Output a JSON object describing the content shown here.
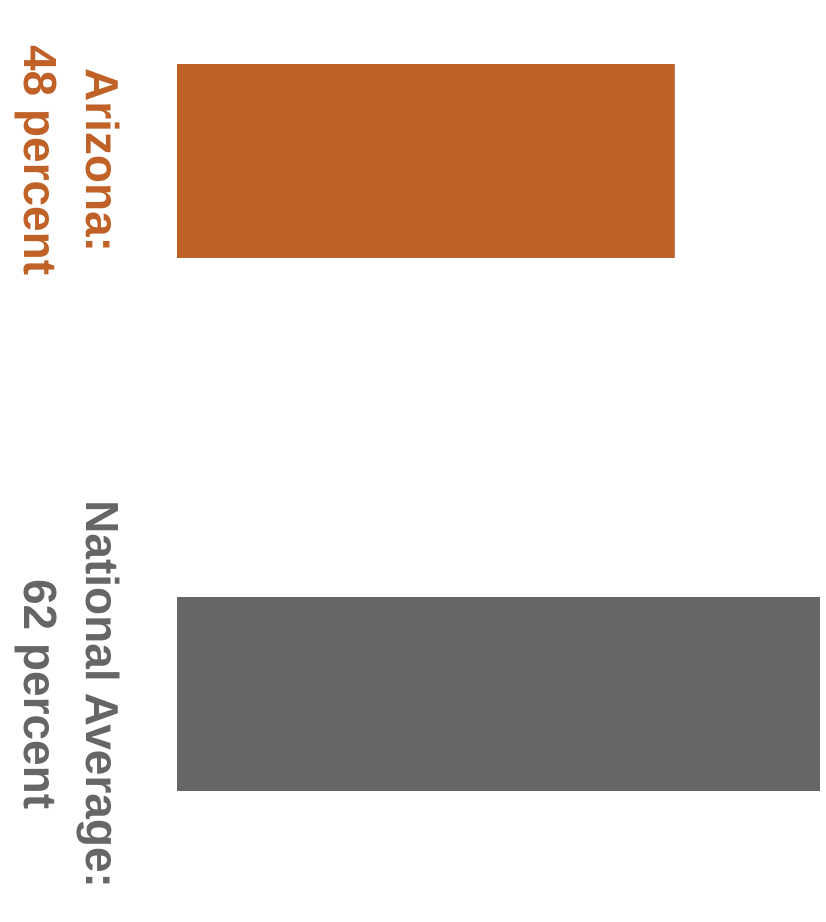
{
  "chart_data": {
    "type": "bar",
    "orientation": "horizontal",
    "xlim": [
      0,
      62
    ],
    "grid": false,
    "legend": "none",
    "bars": [
      {
        "category": "Arizona:",
        "value": 48,
        "value_label": "48 percent",
        "color": "#C06228"
      },
      {
        "category": "National Average:",
        "value": 62,
        "value_label": "62 percent",
        "color": "#666666"
      }
    ]
  }
}
